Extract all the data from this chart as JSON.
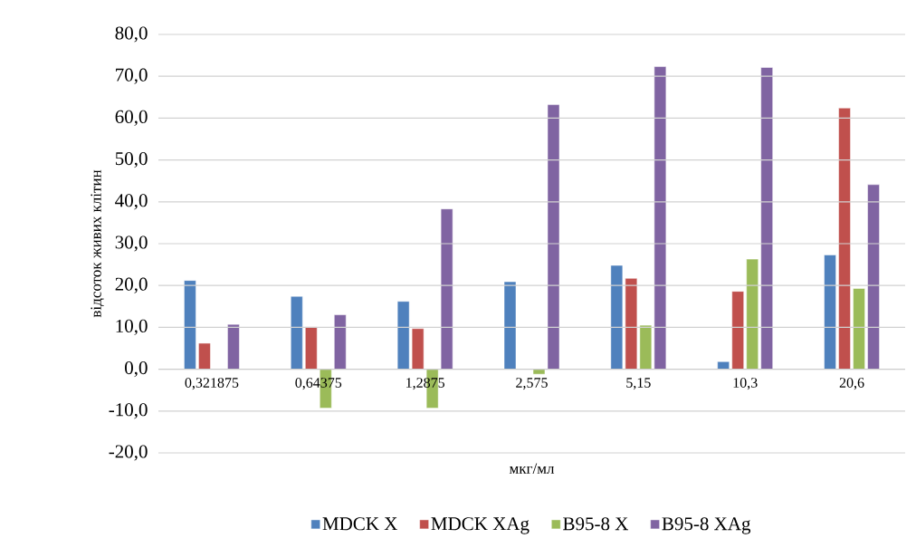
{
  "chart_data": {
    "type": "bar",
    "xlabel": "мкг/мл",
    "ylabel": "відсоток живих клітин",
    "categories": [
      "0,321875",
      "0,64375",
      "1,2875",
      "2,575",
      "5,15",
      "10,3",
      "20,6"
    ],
    "series": [
      {
        "name": "MDCK X",
        "color": "#4f81bd",
        "values": [
          21.2,
          17.4,
          16.2,
          20.9,
          24.8,
          1.8,
          27.3
        ]
      },
      {
        "name": "MDCK XAg",
        "color": "#c0504d",
        "values": [
          6.2,
          10.1,
          9.7,
          null,
          21.7,
          18.6,
          62.4
        ]
      },
      {
        "name": "B95-8 X",
        "color": "#9bbb59",
        "values": [
          null,
          -9.3,
          -9.3,
          -1.2,
          10.5,
          26.3,
          19.3
        ]
      },
      {
        "name": "B95-8 XAg",
        "color": "#8064a2",
        "values": [
          10.7,
          13.0,
          38.3,
          63.2,
          72.3,
          72.1,
          44.1
        ]
      }
    ],
    "ylim": [
      -20,
      80
    ],
    "yticks": [
      {
        "value": -20,
        "label": "-20,0"
      },
      {
        "value": -10,
        "label": "-10,0"
      },
      {
        "value": 0,
        "label": "0,0"
      },
      {
        "value": 10,
        "label": "10,0"
      },
      {
        "value": 20,
        "label": "20,0"
      },
      {
        "value": 30,
        "label": "30,0"
      },
      {
        "value": 40,
        "label": "40,0"
      },
      {
        "value": 50,
        "label": "50,0"
      },
      {
        "value": 60,
        "label": "60,0"
      },
      {
        "value": 70,
        "label": "70,0"
      },
      {
        "value": 80,
        "label": "80,0"
      }
    ],
    "grid": "y",
    "legend": "bottom"
  }
}
